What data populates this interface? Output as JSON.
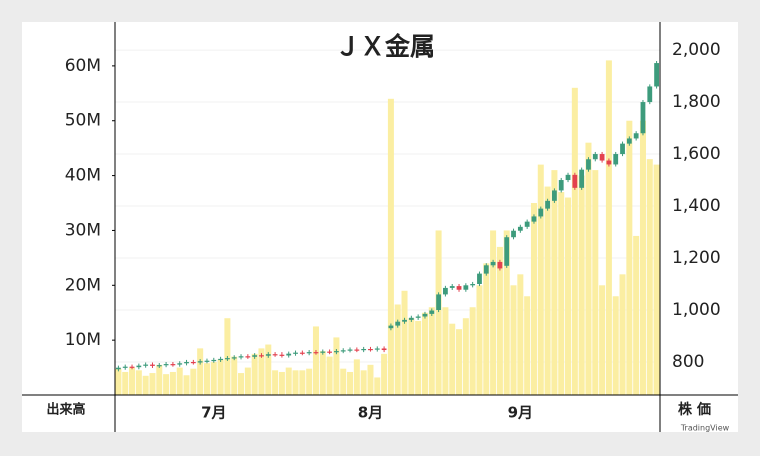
{
  "chart_data": {
    "type": "candlestick",
    "title": "ＪＸ金属",
    "volume_label": "出来高",
    "price_label": "株価",
    "watermark": "TradingView",
    "categories": [
      null,
      null,
      null,
      null,
      null,
      null,
      null,
      null,
      null,
      null,
      null,
      null,
      null,
      null,
      "7月",
      null,
      null,
      null,
      null,
      null,
      null,
      null,
      null,
      null,
      null,
      null,
      null,
      null,
      null,
      null,
      null,
      null,
      null,
      null,
      null,
      null,
      null,
      "8月",
      null,
      null,
      null,
      null,
      null,
      null,
      null,
      null,
      null,
      null,
      null,
      null,
      null,
      null,
      null,
      null,
      null,
      null,
      null,
      null,
      null,
      "9月",
      null,
      null,
      null,
      null,
      null,
      null,
      null,
      null,
      null,
      null,
      null,
      null,
      null,
      null,
      null,
      null,
      null,
      null,
      null,
      null
    ],
    "open": [
      772,
      778,
      782,
      780,
      786,
      790,
      785,
      788,
      792,
      790,
      795,
      800,
      798,
      803,
      805,
      808,
      812,
      815,
      818,
      822,
      820,
      826,
      824,
      830,
      828,
      825,
      832,
      836,
      834,
      838,
      836,
      840,
      838,
      842,
      845,
      848,
      846,
      850,
      848,
      852,
      930,
      940,
      955,
      962,
      970,
      975,
      985,
      1000,
      1060,
      1085,
      1092,
      1078,
      1095,
      1100,
      1140,
      1172,
      1185,
      1170,
      1280,
      1305,
      1320,
      1340,
      1360,
      1390,
      1420,
      1460,
      1500,
      1520,
      1470,
      1540,
      1580,
      1600,
      1575,
      1560,
      1600,
      1640,
      1660,
      1680,
      1800,
      1860
    ],
    "high": [
      786,
      790,
      790,
      794,
      798,
      798,
      796,
      800,
      800,
      803,
      808,
      808,
      811,
      813,
      816,
      820,
      823,
      826,
      830,
      830,
      834,
      834,
      838,
      838,
      838,
      840,
      844,
      844,
      846,
      846,
      848,
      848,
      850,
      853,
      856,
      856,
      858,
      858,
      860,
      860,
      948,
      963,
      970,
      978,
      983,
      993,
      1006,
      1068,
      1093,
      1100,
      1100,
      1103,
      1108,
      1148,
      1180,
      1193,
      1193,
      1288,
      1313,
      1328,
      1348,
      1368,
      1398,
      1428,
      1468,
      1508,
      1528,
      1528,
      1548,
      1588,
      1608,
      1608,
      1583,
      1608,
      1648,
      1668,
      1688,
      1808,
      1868,
      1958
    ],
    "low": [
      764,
      770,
      772,
      772,
      778,
      777,
      777,
      780,
      782,
      782,
      787,
      790,
      790,
      795,
      797,
      800,
      804,
      807,
      810,
      812,
      812,
      816,
      816,
      820,
      817,
      817,
      824,
      826,
      826,
      828,
      828,
      830,
      830,
      834,
      837,
      838,
      838,
      840,
      840,
      838,
      922,
      932,
      947,
      954,
      962,
      967,
      977,
      992,
      1052,
      1077,
      1070,
      1070,
      1087,
      1092,
      1132,
      1164,
      1152,
      1162,
      1272,
      1297,
      1312,
      1332,
      1352,
      1382,
      1412,
      1452,
      1492,
      1462,
      1462,
      1532,
      1572,
      1567,
      1552,
      1552,
      1592,
      1632,
      1652,
      1672,
      1792,
      1852
    ],
    "close": [
      778,
      782,
      780,
      786,
      790,
      785,
      788,
      792,
      790,
      795,
      800,
      798,
      803,
      805,
      808,
      812,
      815,
      818,
      822,
      820,
      826,
      824,
      830,
      828,
      825,
      832,
      836,
      834,
      838,
      836,
      840,
      838,
      842,
      845,
      848,
      846,
      850,
      848,
      852,
      846,
      940,
      955,
      962,
      970,
      975,
      985,
      998,
      1060,
      1085,
      1092,
      1078,
      1095,
      1100,
      1140,
      1172,
      1185,
      1160,
      1280,
      1305,
      1320,
      1340,
      1360,
      1390,
      1420,
      1460,
      1500,
      1520,
      1470,
      1540,
      1580,
      1600,
      1575,
      1560,
      1600,
      1640,
      1660,
      1680,
      1800,
      1860,
      1950
    ],
    "volume": [
      4.8,
      4.2,
      5,
      4.5,
      3.5,
      4,
      5.5,
      3.8,
      4.2,
      5,
      3.6,
      4.8,
      8.5,
      5.8,
      6,
      6.5,
      14,
      7,
      4,
      5,
      7.5,
      8.5,
      9.2,
      4.5,
      4.2,
      5,
      4.5,
      4.5,
      4.8,
      12.5,
      8,
      7,
      10.5,
      4.8,
      4.2,
      6.5,
      4.5,
      5.5,
      3.2,
      7.5,
      54,
      16.5,
      19,
      14,
      13.5,
      15,
      16,
      30,
      16,
      13,
      12,
      14,
      16,
      20,
      24,
      30,
      27,
      30,
      20,
      22,
      18,
      35,
      42,
      38,
      41,
      37,
      36,
      56,
      40,
      46,
      41,
      20,
      61,
      18,
      22,
      50,
      29,
      50,
      43,
      42
    ],
    "up_color": "#3d9b7c",
    "down_color": "#e3414f",
    "volume_color": "#fbeea2",
    "ylim": [
      0,
      68
    ],
    "yticks": [
      {
        "value": 10,
        "label": "10M"
      },
      {
        "value": 20,
        "label": "20M"
      },
      {
        "value": 30,
        "label": "30M"
      },
      {
        "value": 40,
        "label": "40M"
      },
      {
        "value": 50,
        "label": "50M"
      },
      {
        "value": 60,
        "label": "60M"
      }
    ],
    "y2lim": [
      673,
      2108
    ],
    "y2ticks": [
      800,
      {
        "value": 1000,
        "label": "1,000"
      },
      {
        "value": 1200,
        "label": "1,200"
      },
      {
        "value": 1400,
        "label": "1,400"
      },
      {
        "value": 1600,
        "label": "1,600"
      },
      {
        "value": 1800,
        "label": "1,800"
      },
      {
        "value": 2000,
        "label": "2,000"
      }
    ],
    "grid": true
  }
}
